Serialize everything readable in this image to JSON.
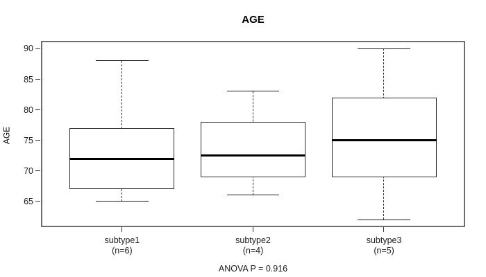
{
  "title": "AGE",
  "chart_data": {
    "type": "boxplot",
    "title": "AGE",
    "xlabel": "",
    "ylabel": "AGE",
    "ylim": [
      60.8,
      91.3
    ],
    "yticks": [
      65,
      70,
      75,
      80,
      85,
      90
    ],
    "grid": false,
    "legend": "none",
    "categories": [
      "subtype1",
      "subtype2",
      "subtype3"
    ],
    "groups": [
      {
        "label": "subtype1",
        "sublabel": "(n=6)",
        "n": 6,
        "whisker_low": 65,
        "q1": 67,
        "median": 72,
        "q3": 77,
        "whisker_high": 88
      },
      {
        "label": "subtype2",
        "sublabel": "(n=4)",
        "n": 4,
        "whisker_low": 66,
        "q1": 69,
        "median": 72.5,
        "q3": 78,
        "whisker_high": 83
      },
      {
        "label": "subtype3",
        "sublabel": "(n=5)",
        "n": 5,
        "whisker_low": 62,
        "q1": 69,
        "median": 75,
        "q3": 82,
        "whisker_high": 90
      }
    ],
    "annotation": "ANOVA P = 0.916",
    "colors": {
      "box_fill": "#ffffff",
      "line": "#000000",
      "text": "#000000",
      "background": "#ffffff"
    }
  }
}
